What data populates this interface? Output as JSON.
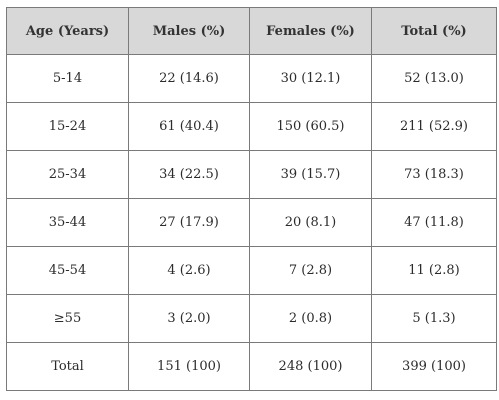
{
  "table": {
    "headers": [
      "Age (Years)",
      "Males (%)",
      "Females (%)",
      "Total (%)"
    ],
    "rows": [
      [
        "5-14",
        "22 (14.6)",
        "30 (12.1)",
        "52 (13.0)"
      ],
      [
        "15-24",
        "61 (40.4)",
        "150 (60.5)",
        "211 (52.9)"
      ],
      [
        "25-34",
        "34 (22.5)",
        "39 (15.7)",
        "73 (18.3)"
      ],
      [
        "35-44",
        "27 (17.9)",
        "20 (8.1)",
        "47 (11.8)"
      ],
      [
        "45-54",
        "4 (2.6)",
        "7 (2.8)",
        "11 (2.8)"
      ],
      [
        "≥55",
        "3 (2.0)",
        "2 (0.8)",
        "5 (1.3)"
      ],
      [
        "Total",
        "151 (100)",
        "248 (100)",
        "399 (100)"
      ]
    ],
    "header_background": "#d8d8d8",
    "border_color": "#7a7a7a"
  }
}
